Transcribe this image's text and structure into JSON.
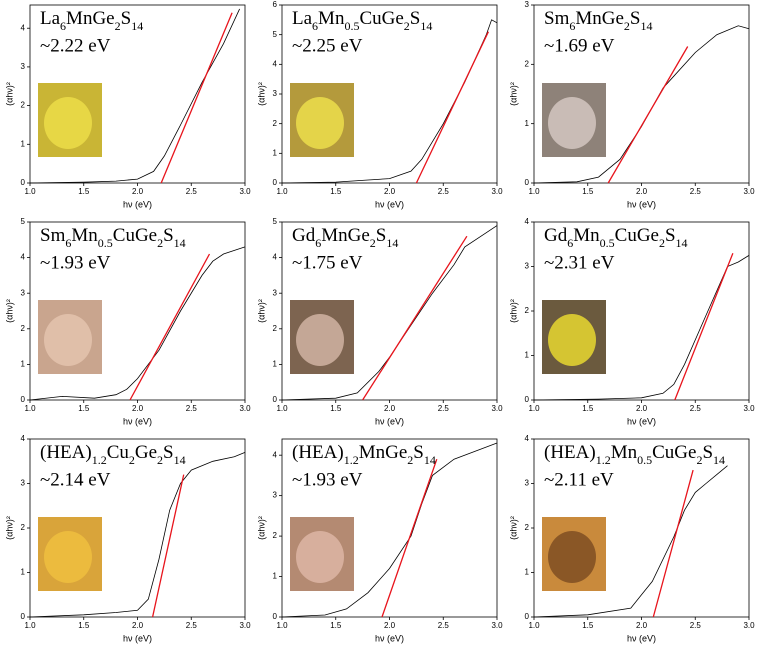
{
  "chart_data": [
    {
      "type": "line",
      "title": "La6MnGe2S14",
      "annotation": "~2.22 eV",
      "x_label": "hν (eV)",
      "y_label": "(αhν)²",
      "xlim": [
        1,
        3
      ],
      "xticks": [
        {
          "value": 1,
          "label": "1.0"
        },
        1.5,
        {
          "value": 2,
          "label": "2.0"
        },
        2.5,
        {
          "value": 3,
          "label": "3.0"
        }
      ],
      "ylim": [
        0,
        4.6
      ],
      "yticks": [
        0,
        1,
        2,
        3,
        4
      ],
      "series": [
        {
          "color": "#000000",
          "x": [
            1.0,
            1.5,
            1.8,
            2.0,
            2.15,
            2.25,
            2.4,
            2.6,
            2.8,
            2.95
          ],
          "values": [
            0,
            0.02,
            0.05,
            0.1,
            0.3,
            0.7,
            1.5,
            2.6,
            3.6,
            4.5
          ]
        },
        {
          "color": "#e8141c",
          "x": [
            2.22,
            2.88
          ],
          "values": [
            0,
            4.4
          ]
        }
      ]
    },
    {
      "type": "line",
      "title": "La6Mn0.5CuGe2S14",
      "annotation": "~2.25 eV",
      "x_label": "hν (eV)",
      "y_label": "(αhν)²",
      "xlim": [
        1,
        3
      ],
      "xticks": [
        {
          "value": 1,
          "label": "1.0"
        },
        1.5,
        {
          "value": 2,
          "label": "2.0"
        },
        2.5,
        {
          "value": 3,
          "label": "3.0"
        }
      ],
      "ylim": [
        0,
        6
      ],
      "yticks": [
        0,
        1,
        2,
        3,
        4,
        5,
        6
      ],
      "series": [
        {
          "color": "#000000",
          "x": [
            1.0,
            1.5,
            1.8,
            2.0,
            2.2,
            2.3,
            2.5,
            2.7,
            2.9,
            2.95,
            3.0
          ],
          "values": [
            0,
            0.03,
            0.1,
            0.15,
            0.4,
            0.8,
            2.0,
            3.4,
            5.0,
            5.5,
            5.4
          ]
        },
        {
          "color": "#e8141c",
          "x": [
            2.25,
            2.92
          ],
          "values": [
            0,
            5.1
          ]
        }
      ]
    },
    {
      "type": "line",
      "title": "Sm6MnGe2S14",
      "annotation": "~1.69 eV",
      "x_label": "hν (eV)",
      "y_label": "(αhν)²",
      "xlim": [
        1,
        3
      ],
      "xticks": [
        {
          "value": 1,
          "label": "1.0"
        },
        1.5,
        {
          "value": 2,
          "label": "2.0"
        },
        2.5,
        {
          "value": 3,
          "label": "3.0"
        }
      ],
      "ylim": [
        0,
        3
      ],
      "yticks": [
        0,
        1,
        2,
        3
      ],
      "series": [
        {
          "color": "#000000",
          "x": [
            1.0,
            1.4,
            1.6,
            1.8,
            2.0,
            2.2,
            2.3,
            2.5,
            2.7,
            2.9,
            3.0
          ],
          "values": [
            0,
            0.02,
            0.1,
            0.4,
            0.95,
            1.6,
            1.8,
            2.2,
            2.5,
            2.65,
            2.6
          ]
        },
        {
          "color": "#e8141c",
          "x": [
            1.69,
            2.43
          ],
          "values": [
            0,
            2.3
          ]
        }
      ]
    },
    {
      "type": "line",
      "title": "Sm6Mn0.5CuGe2S14",
      "annotation": "~1.93 eV",
      "x_label": "hν (eV)",
      "y_label": "(αhν)²",
      "xlim": [
        1,
        3
      ],
      "xticks": [
        {
          "value": 1,
          "label": "1.0"
        },
        1.5,
        {
          "value": 2,
          "label": "2.0"
        },
        2.5,
        {
          "value": 3,
          "label": "3.0"
        }
      ],
      "ylim": [
        0,
        5
      ],
      "yticks": [
        0,
        1,
        2,
        3,
        4,
        5
      ],
      "series": [
        {
          "color": "#000000",
          "x": [
            1.0,
            1.3,
            1.6,
            1.8,
            1.9,
            2.0,
            2.2,
            2.4,
            2.6,
            2.7,
            2.8,
            3.0
          ],
          "values": [
            0,
            0.1,
            0.05,
            0.15,
            0.3,
            0.6,
            1.4,
            2.5,
            3.5,
            3.9,
            4.1,
            4.3
          ]
        },
        {
          "color": "#e8141c",
          "x": [
            1.93,
            2.67
          ],
          "values": [
            0,
            4.1
          ]
        }
      ]
    },
    {
      "type": "line",
      "title": "Gd6MnGe2S14",
      "annotation": "~1.75 eV",
      "x_label": "hν (eV)",
      "y_label": "(αhν)²",
      "xlim": [
        1,
        3
      ],
      "xticks": [
        {
          "value": 1,
          "label": "1.0"
        },
        1.5,
        {
          "value": 2,
          "label": "2.0"
        },
        2.5,
        {
          "value": 3,
          "label": "3.0"
        }
      ],
      "ylim": [
        0,
        5
      ],
      "yticks": [
        0,
        1,
        2,
        3,
        4,
        5
      ],
      "series": [
        {
          "color": "#000000",
          "x": [
            1.0,
            1.5,
            1.7,
            1.9,
            2.0,
            2.2,
            2.4,
            2.6,
            2.7,
            2.9,
            3.0
          ],
          "values": [
            0,
            0.05,
            0.2,
            0.8,
            1.2,
            2.1,
            3.0,
            3.8,
            4.3,
            4.7,
            4.9
          ]
        },
        {
          "color": "#e8141c",
          "x": [
            1.75,
            2.72
          ],
          "values": [
            0,
            4.6
          ]
        }
      ]
    },
    {
      "type": "line",
      "title": "Gd6Mn0.5CuGe2S14",
      "annotation": "~2.31 eV",
      "x_label": "hν (eV)",
      "y_label": "(αhν)²",
      "xlim": [
        1,
        3
      ],
      "xticks": [
        {
          "value": 1,
          "label": "1.0"
        },
        1.5,
        {
          "value": 2,
          "label": "2.0"
        },
        2.5,
        {
          "value": 3,
          "label": "3.0"
        }
      ],
      "ylim": [
        0,
        4
      ],
      "yticks": [
        0,
        1,
        2,
        3,
        4
      ],
      "series": [
        {
          "color": "#000000",
          "x": [
            1.0,
            1.6,
            2.0,
            2.2,
            2.3,
            2.4,
            2.6,
            2.8,
            2.9,
            3.0
          ],
          "values": [
            0,
            0.02,
            0.05,
            0.15,
            0.35,
            0.8,
            1.9,
            3.0,
            3.1,
            3.25
          ]
        },
        {
          "color": "#e8141c",
          "x": [
            2.31,
            2.85
          ],
          "values": [
            0,
            3.3
          ]
        }
      ]
    },
    {
      "type": "line",
      "title": "(HEA)1.2Cu2Ge2S14",
      "annotation": "~2.14 eV",
      "x_label": "hν (eV)",
      "y_label": "(αhν)²",
      "xlim": [
        1,
        3
      ],
      "xticks": [
        {
          "value": 1,
          "label": "1.0"
        },
        1.5,
        {
          "value": 2,
          "label": "2.0"
        },
        2.5,
        {
          "value": 3,
          "label": "3.0"
        }
      ],
      "ylim": [
        0,
        4
      ],
      "yticks": [
        0,
        1,
        2,
        3,
        4
      ],
      "series": [
        {
          "color": "#000000",
          "x": [
            1.0,
            1.5,
            1.8,
            2.0,
            2.1,
            2.2,
            2.3,
            2.4,
            2.5,
            2.7,
            2.9,
            3.0
          ],
          "values": [
            0,
            0.05,
            0.1,
            0.15,
            0.4,
            1.3,
            2.4,
            3.0,
            3.3,
            3.5,
            3.6,
            3.7
          ]
        },
        {
          "color": "#e8141c",
          "x": [
            2.14,
            2.43
          ],
          "values": [
            0,
            3.2
          ]
        }
      ]
    },
    {
      "type": "line",
      "title": "(HEA)1.2MnGe2S14",
      "annotation": "~1.93 eV",
      "x_label": "hν (eV)",
      "y_label": "(αhν)²",
      "xlim": [
        1,
        3
      ],
      "xticks": [
        {
          "value": 1,
          "label": "1.0"
        },
        1.5,
        {
          "value": 2,
          "label": "2.0"
        },
        2.5,
        {
          "value": 3,
          "label": "3.0"
        }
      ],
      "ylim": [
        0,
        4.4
      ],
      "yticks": [
        0,
        1,
        2,
        3,
        4
      ],
      "series": [
        {
          "color": "#000000",
          "x": [
            1.0,
            1.4,
            1.6,
            1.8,
            2.0,
            2.2,
            2.3,
            2.4,
            2.6,
            2.8,
            3.0
          ],
          "values": [
            0,
            0.05,
            0.2,
            0.6,
            1.2,
            2.0,
            2.8,
            3.5,
            3.9,
            4.1,
            4.3
          ]
        },
        {
          "color": "#e8141c",
          "x": [
            1.93,
            2.44
          ],
          "values": [
            0,
            3.9
          ]
        }
      ]
    },
    {
      "type": "line",
      "title": "(HEA)1.2Mn0.5CuGe2S14",
      "annotation": "~2.11 eV",
      "x_label": "hν (eV)",
      "y_label": "(αhν)²",
      "xlim": [
        1,
        3
      ],
      "xticks": [
        {
          "value": 1,
          "label": "1.0"
        },
        1.5,
        {
          "value": 2,
          "label": "2.0"
        },
        2.5,
        {
          "value": 3,
          "label": "3.0"
        }
      ],
      "ylim": [
        0,
        4
      ],
      "yticks": [
        0,
        1,
        2,
        3,
        4
      ],
      "series": [
        {
          "color": "#000000",
          "x": [
            1.0,
            1.5,
            1.9,
            2.0,
            2.1,
            2.3,
            2.4,
            2.5,
            2.6,
            2.7,
            2.8
          ],
          "values": [
            0,
            0.05,
            0.2,
            0.5,
            0.8,
            1.8,
            2.4,
            2.8,
            3.0,
            3.2,
            3.4
          ]
        },
        {
          "color": "#e8141c",
          "x": [
            2.11,
            2.48
          ],
          "values": [
            0,
            3.3
          ]
        }
      ]
    }
  ]
}
